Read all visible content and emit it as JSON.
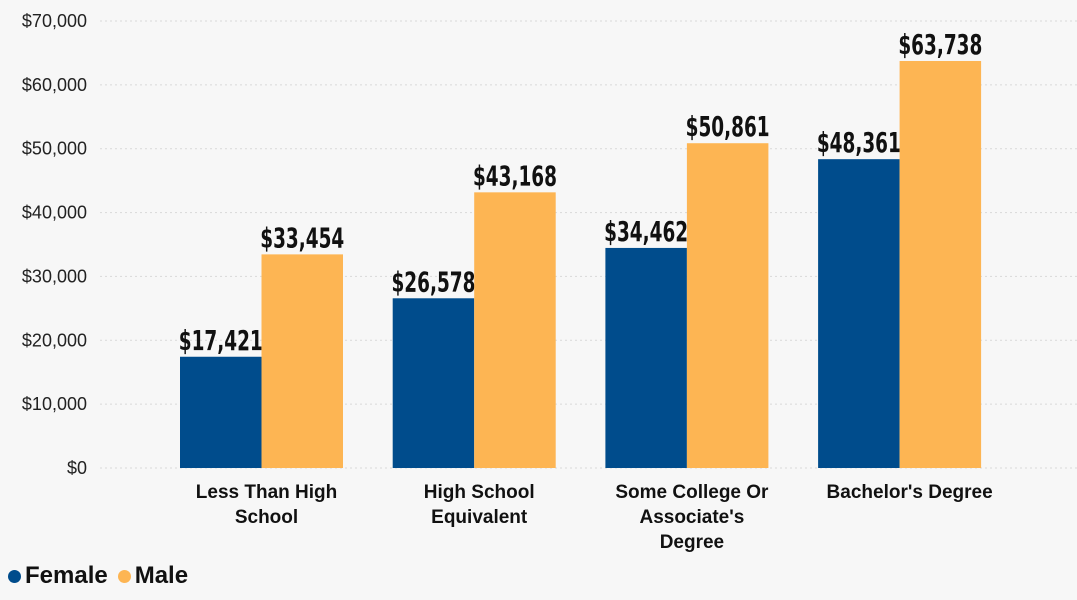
{
  "chart_data": {
    "type": "bar",
    "categories": [
      [
        "Less Than High",
        "School"
      ],
      [
        "High School",
        "Equivalent"
      ],
      [
        "Some College Or",
        "Associate's",
        "Degree"
      ],
      [
        "Bachelor's Degree"
      ]
    ],
    "series": [
      {
        "name": "Female",
        "values": [
          17421,
          26578,
          34462,
          48361
        ],
        "labels": [
          "$17,421",
          "$26,578",
          "$34,462",
          "$48,361"
        ],
        "color": "#004c8c"
      },
      {
        "name": "Male",
        "values": [
          33454,
          43168,
          50861,
          63738
        ],
        "labels": [
          "$33,454",
          "$43,168",
          "$50,861",
          "$63,738"
        ],
        "color": "#fdb553"
      }
    ],
    "ylim": [
      0,
      70000
    ],
    "yticks": [
      0,
      10000,
      20000,
      30000,
      40000,
      50000,
      60000,
      70000
    ],
    "ytick_labels": [
      "$0",
      "$10,000",
      "$20,000",
      "$30,000",
      "$40,000",
      "$50,000",
      "$60,000",
      "$70,000"
    ],
    "grid": true,
    "legend_position": "bottom-left"
  }
}
